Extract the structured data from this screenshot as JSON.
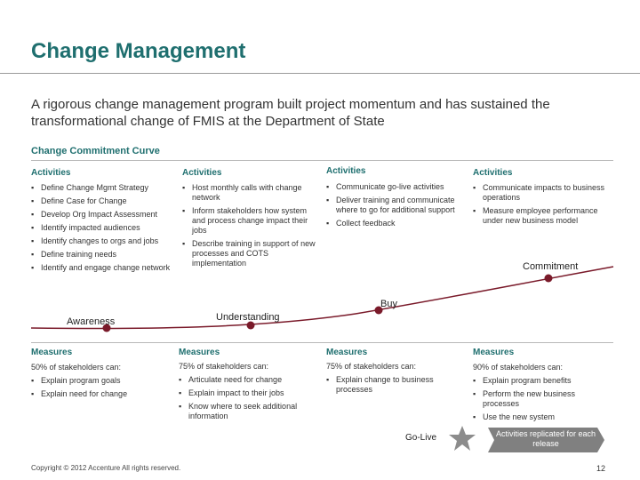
{
  "slide": {
    "title": "Change Management",
    "subtitle": "A rigorous change management program built project momentum and has sustained the transformational change of FMIS at the Department of State",
    "curve_title": "Change Commitment Curve",
    "footer": "Copyright © 2012 Accenture  All rights reserved.",
    "page_number": "12"
  },
  "activities": [
    {
      "header": "Activities",
      "items": [
        "Define Change Mgmt Strategy",
        "Define Case for Change",
        "Develop Org Impact Assessment",
        "Identify impacted audiences",
        "Identify changes to orgs and jobs",
        "Define training needs",
        "Identify and engage change network"
      ]
    },
    {
      "header": "Activities",
      "items": [
        "Host monthly calls with change network",
        "Inform stakeholders how system and process change impact their jobs",
        "Describe training in support of new processes and COTS implementation"
      ]
    },
    {
      "header": "Activities",
      "items": [
        "Communicate go-live activities",
        "Deliver training and communicate where to go for additional support",
        "Collect feedback"
      ]
    },
    {
      "header": "Activities",
      "items": [
        "Communicate impacts to business operations",
        "Measure employee performance under new business model"
      ]
    }
  ],
  "stages": [
    "Awareness",
    "Understanding",
    "Buy",
    "Commitment"
  ],
  "measures": [
    {
      "header": "Measures",
      "intro": "50% of stakeholders can:",
      "items": [
        "Explain program goals",
        "Explain need for change"
      ]
    },
    {
      "header": "Measures",
      "intro": "75% of stakeholders can:",
      "items": [
        "Articulate need for change",
        "Explain impact to their jobs",
        "Know where to seek additional information"
      ]
    },
    {
      "header": "Measures",
      "intro": "75% of stakeholders can:",
      "items": [
        "Explain change to business processes"
      ]
    },
    {
      "header": "Measures",
      "intro": "90% of stakeholders can:",
      "items": [
        "Explain program benefits",
        "Perform the new business processes",
        "Use the new system"
      ]
    }
  ],
  "golive": {
    "label": "Go-Live",
    "arrow_text": "Activities replicated for each release"
  },
  "colors": {
    "accent": "#1f6f6f",
    "curve": "#7a1a2a",
    "marker": "#7a1a2a",
    "star": "#8c8c8c",
    "arrow": "#808080"
  }
}
